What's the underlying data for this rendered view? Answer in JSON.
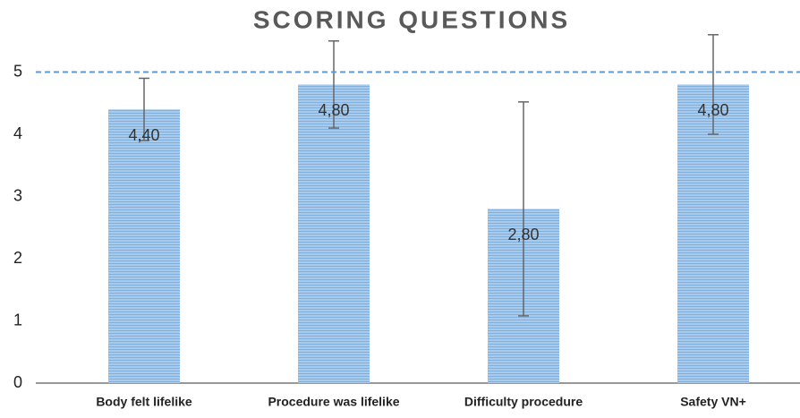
{
  "chart_data": {
    "type": "bar",
    "title": "SCORING QUESTIONS",
    "categories": [
      "Body felt lifelike",
      "Procedure was lifelike",
      "Difficulty procedure",
      "Safety VN+"
    ],
    "values": [
      4.4,
      4.8,
      2.8,
      4.8
    ],
    "value_labels": [
      "4,40",
      "4,80",
      "2,80",
      "4,80"
    ],
    "errors": [
      0.5,
      0.7,
      1.72,
      0.8
    ],
    "color": "#9dc3e6",
    "reference_line": 5,
    "reference_color": "#5b9bd5",
    "ylim": [
      0,
      6
    ],
    "yticks": [
      0,
      1,
      2,
      3,
      4,
      5
    ]
  }
}
